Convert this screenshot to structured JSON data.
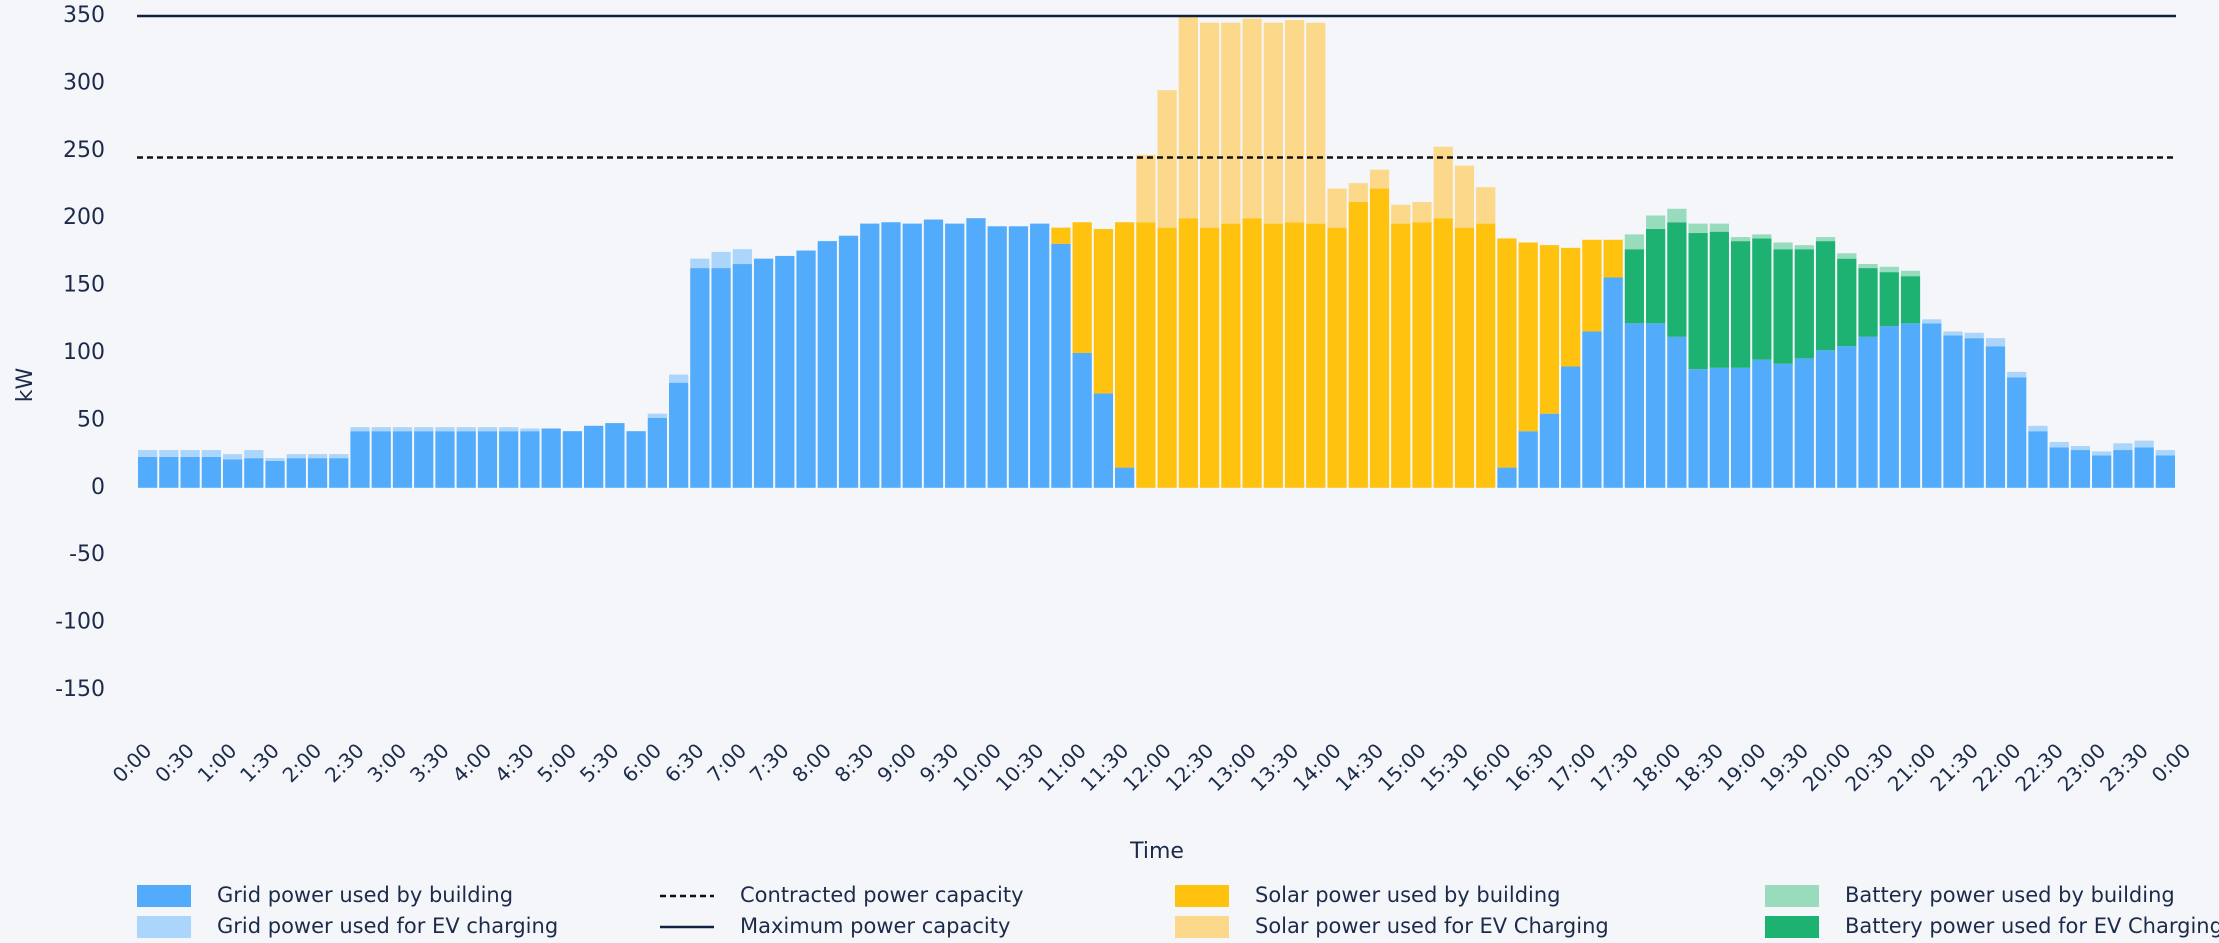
{
  "chart_data": {
    "type": "stacked_bar",
    "y_label": "kW",
    "x_label": "Time",
    "ylim": [
      -150,
      350
    ],
    "yticks": [
      -150,
      -100,
      -50,
      0,
      50,
      100,
      150,
      200,
      250,
      300,
      350
    ],
    "xlim": [
      0,
      24
    ],
    "x": [
      0,
      0.25,
      0.5,
      0.75,
      1,
      1.25,
      1.5,
      1.75,
      2,
      2.25,
      2.5,
      2.75,
      3,
      3.25,
      3.5,
      3.75,
      4,
      4.25,
      4.5,
      4.75,
      5,
      5.25,
      5.5,
      5.75,
      6,
      6.25,
      6.5,
      6.75,
      7,
      7.25,
      7.5,
      7.75,
      8,
      8.25,
      8.5,
      8.75,
      9,
      9.25,
      9.5,
      9.75,
      10,
      10.25,
      10.5,
      10.75,
      11,
      11.25,
      11.5,
      11.75,
      12,
      12.25,
      12.5,
      12.75,
      13,
      13.25,
      13.5,
      13.75,
      14,
      14.25,
      14.5,
      14.75,
      15,
      15.25,
      15.5,
      15.75,
      16,
      16.25,
      16.5,
      16.75,
      17,
      17.25,
      17.5,
      17.75,
      18,
      18.25,
      18.5,
      18.75,
      19,
      19.25,
      19.5,
      19.75,
      20,
      20.25,
      20.5,
      20.75,
      21,
      21.25,
      21.5,
      21.75,
      22,
      22.25,
      22.5,
      22.75,
      23,
      23.25,
      23.5,
      23.75
    ],
    "xticks": [
      {
        "value": 0,
        "label": "0:00"
      },
      {
        "value": 0.5,
        "label": "0:30"
      },
      {
        "value": 1,
        "label": "1:00"
      },
      {
        "value": 1.5,
        "label": "1:30"
      },
      {
        "value": 2,
        "label": "2:00"
      },
      {
        "value": 2.5,
        "label": "2:30"
      },
      {
        "value": 3,
        "label": "3:00"
      },
      {
        "value": 3.5,
        "label": "3:30"
      },
      {
        "value": 4,
        "label": "4:00"
      },
      {
        "value": 4.5,
        "label": "4:30"
      },
      {
        "value": 5,
        "label": "5:00"
      },
      {
        "value": 5.5,
        "label": "5:30"
      },
      {
        "value": 6,
        "label": "6:00"
      },
      {
        "value": 6.5,
        "label": "6:30"
      },
      {
        "value": 7,
        "label": "7:00"
      },
      {
        "value": 7.5,
        "label": "7:30"
      },
      {
        "value": 8,
        "label": "8:00"
      },
      {
        "value": 8.5,
        "label": "8:30"
      },
      {
        "value": 9,
        "label": "9:00"
      },
      {
        "value": 9.5,
        "label": "9:30"
      },
      {
        "value": 10,
        "label": "10:00"
      },
      {
        "value": 10.5,
        "label": "10:30"
      },
      {
        "value": 11,
        "label": "11:00"
      },
      {
        "value": 11.5,
        "label": "11:30"
      },
      {
        "value": 12,
        "label": "12:00"
      },
      {
        "value": 12.5,
        "label": "12:30"
      },
      {
        "value": 13,
        "label": "13:00"
      },
      {
        "value": 13.5,
        "label": "13:30"
      },
      {
        "value": 14,
        "label": "14:00"
      },
      {
        "value": 14.5,
        "label": "14:30"
      },
      {
        "value": 15,
        "label": "15:00"
      },
      {
        "value": 15.5,
        "label": "15:30"
      },
      {
        "value": 16,
        "label": "16:00"
      },
      {
        "value": 16.5,
        "label": "16:30"
      },
      {
        "value": 17,
        "label": "17:00"
      },
      {
        "value": 17.5,
        "label": "17:30"
      },
      {
        "value": 18,
        "label": "18:00"
      },
      {
        "value": 18.5,
        "label": "18:30"
      },
      {
        "value": 19,
        "label": "19:00"
      },
      {
        "value": 19.5,
        "label": "19:30"
      },
      {
        "value": 20,
        "label": "20:00"
      },
      {
        "value": 20.5,
        "label": "20:30"
      },
      {
        "value": 21,
        "label": "21:00"
      },
      {
        "value": 21.5,
        "label": "21:30"
      },
      {
        "value": 22,
        "label": "22:00"
      },
      {
        "value": 22.5,
        "label": "22:30"
      },
      {
        "value": 23,
        "label": "23:00"
      },
      {
        "value": 23.5,
        "label": "23:30"
      },
      {
        "value": 24,
        "label": "0:00"
      }
    ],
    "series": [
      {
        "name": "Grid power used by building",
        "color": "#52abfb",
        "values": [
          23,
          23,
          23,
          23,
          21,
          22,
          20,
          22,
          22,
          22,
          42,
          42,
          42,
          42,
          42,
          42,
          42,
          42,
          42,
          44,
          42,
          46,
          48,
          42,
          52,
          78,
          163,
          163,
          166,
          170,
          172,
          176,
          183,
          187,
          196,
          197,
          196,
          199,
          196,
          200,
          194,
          194,
          196,
          181,
          100,
          70,
          15,
          0,
          0,
          0,
          0,
          0,
          0,
          0,
          0,
          0,
          0,
          0,
          0,
          0,
          0,
          0,
          0,
          0,
          15,
          42,
          55,
          90,
          116,
          156,
          122,
          122,
          112,
          88,
          89,
          89,
          95,
          92,
          96,
          102,
          105,
          112,
          120,
          122,
          122,
          113,
          111,
          105,
          82,
          42,
          30,
          28,
          24,
          28,
          30,
          24
        ]
      },
      {
        "name": "Grid power used for EV charging",
        "color": "#acd5fb",
        "values": [
          5,
          5,
          5,
          5,
          4,
          6,
          2,
          3,
          3,
          3,
          3,
          3,
          3,
          3,
          3,
          3,
          3,
          3,
          2,
          0,
          0,
          0,
          0,
          0,
          3,
          6,
          7,
          12,
          11,
          0,
          0,
          0,
          0,
          0,
          0,
          0,
          0,
          0,
          0,
          0,
          0,
          0,
          0,
          0,
          0,
          0,
          0,
          0,
          0,
          0,
          0,
          0,
          0,
          0,
          0,
          0,
          0,
          0,
          0,
          0,
          0,
          0,
          0,
          0,
          0,
          0,
          0,
          0,
          0,
          0,
          0,
          0,
          0,
          0,
          0,
          0,
          0,
          0,
          0,
          0,
          0,
          0,
          0,
          0,
          3,
          3,
          4,
          6,
          4,
          4,
          4,
          3,
          3,
          5,
          5,
          4
        ]
      },
      {
        "name": "Solar power used by building",
        "color": "#ffc20e",
        "values": [
          0,
          0,
          0,
          0,
          0,
          0,
          0,
          0,
          0,
          0,
          0,
          0,
          0,
          0,
          0,
          0,
          0,
          0,
          0,
          0,
          0,
          0,
          0,
          0,
          0,
          0,
          0,
          0,
          0,
          0,
          0,
          0,
          0,
          0,
          0,
          0,
          0,
          0,
          0,
          0,
          0,
          0,
          0,
          12,
          97,
          122,
          182,
          197,
          193,
          200,
          193,
          196,
          200,
          196,
          197,
          196,
          193,
          212,
          222,
          196,
          197,
          200,
          193,
          196,
          170,
          140,
          125,
          88,
          68,
          28,
          0,
          0,
          0,
          0,
          0,
          0,
          0,
          0,
          0,
          0,
          0,
          0,
          0,
          0,
          0,
          0,
          0,
          0,
          0,
          0,
          0,
          0,
          0,
          0,
          0,
          0
        ]
      },
      {
        "name": "Solar power used for EV Charging",
        "color": "#fcd98a",
        "values": [
          0,
          0,
          0,
          0,
          0,
          0,
          0,
          0,
          0,
          0,
          0,
          0,
          0,
          0,
          0,
          0,
          0,
          0,
          0,
          0,
          0,
          0,
          0,
          0,
          0,
          0,
          0,
          0,
          0,
          0,
          0,
          0,
          0,
          0,
          0,
          0,
          0,
          0,
          0,
          0,
          0,
          0,
          0,
          0,
          0,
          0,
          0,
          50,
          102,
          150,
          152,
          149,
          148,
          149,
          150,
          149,
          29,
          14,
          14,
          14,
          15,
          53,
          46,
          27,
          0,
          0,
          0,
          0,
          0,
          0,
          0,
          0,
          0,
          0,
          0,
          0,
          0,
          0,
          0,
          0,
          0,
          0,
          0,
          0,
          0,
          0,
          0,
          0,
          0,
          0,
          0,
          0,
          0,
          0,
          0,
          0
        ]
      },
      {
        "name": "Battery power used for EV Charging",
        "color": "#1db272",
        "values": [
          0,
          0,
          0,
          0,
          0,
          0,
          0,
          0,
          0,
          0,
          0,
          0,
          0,
          0,
          0,
          0,
          0,
          0,
          0,
          0,
          0,
          0,
          0,
          0,
          0,
          0,
          0,
          0,
          0,
          0,
          0,
          0,
          0,
          0,
          0,
          0,
          0,
          0,
          0,
          0,
          0,
          0,
          0,
          0,
          0,
          0,
          0,
          0,
          0,
          0,
          0,
          0,
          0,
          0,
          0,
          0,
          0,
          0,
          0,
          0,
          0,
          0,
          0,
          0,
          0,
          0,
          0,
          0,
          0,
          0,
          55,
          70,
          85,
          101,
          101,
          94,
          90,
          85,
          81,
          81,
          65,
          51,
          40,
          35,
          0,
          0,
          0,
          0,
          0,
          0,
          0,
          0,
          0,
          0,
          0,
          0
        ]
      },
      {
        "name": "Battery power used by building",
        "color": "#99dbbd",
        "values": [
          0,
          0,
          0,
          0,
          0,
          0,
          0,
          0,
          0,
          0,
          0,
          0,
          0,
          0,
          0,
          0,
          0,
          0,
          0,
          0,
          0,
          0,
          0,
          0,
          0,
          0,
          0,
          0,
          0,
          0,
          0,
          0,
          0,
          0,
          0,
          0,
          0,
          0,
          0,
          0,
          0,
          0,
          0,
          0,
          0,
          0,
          0,
          0,
          0,
          0,
          0,
          0,
          0,
          0,
          0,
          0,
          0,
          0,
          0,
          0,
          0,
          0,
          0,
          0,
          0,
          0,
          0,
          0,
          0,
          0,
          11,
          10,
          10,
          7,
          6,
          3,
          3,
          5,
          3,
          3,
          4,
          3,
          4,
          4,
          0,
          0,
          0,
          0,
          0,
          0,
          0,
          0,
          0,
          0,
          0,
          0
        ]
      }
    ],
    "reference_lines": [
      {
        "name": "Contracted power capacity",
        "value": 245,
        "color": "#111111",
        "style": "dashed"
      },
      {
        "name": "Maximum power capacity",
        "value": 350,
        "color": "#10223f",
        "style": "solid"
      }
    ]
  }
}
